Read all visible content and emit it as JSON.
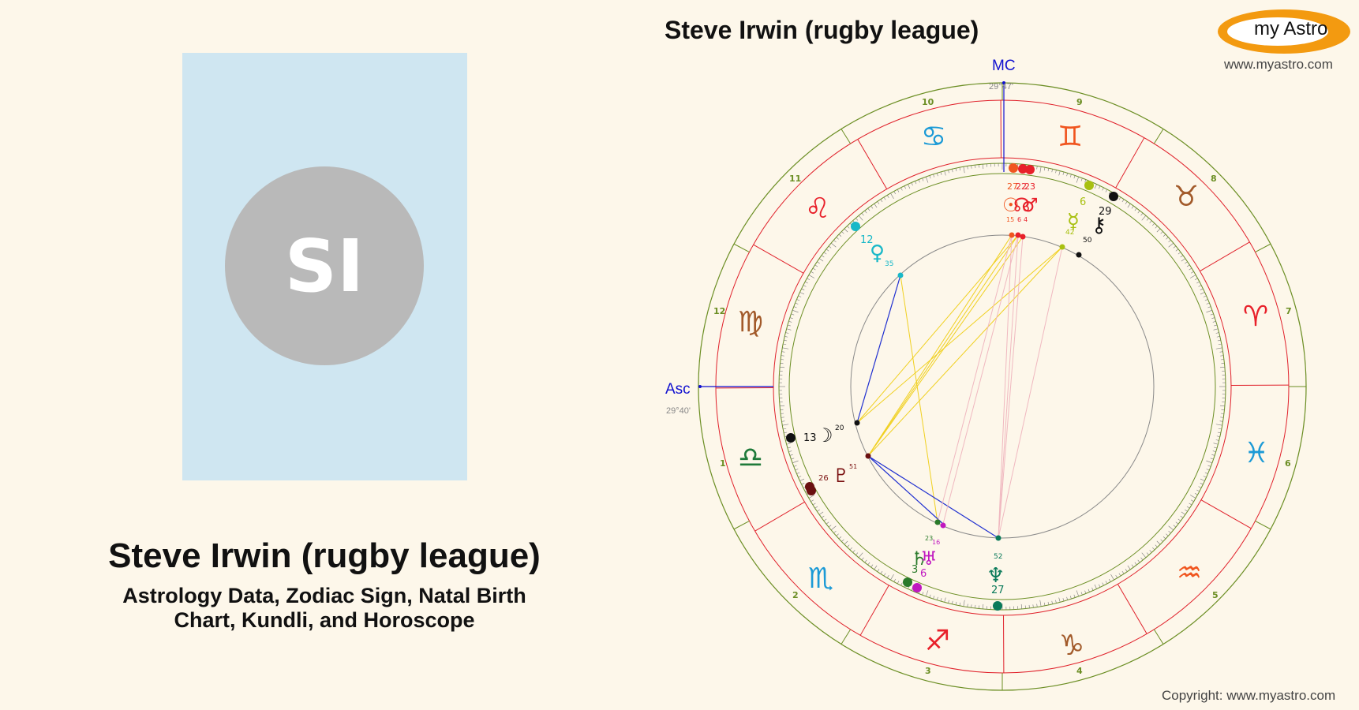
{
  "profile": {
    "initials": "SI",
    "name": "Steve Irwin (rugby league)",
    "subtitle": "Astrology Data, Zodiac Sign, Natal Birth Chart, Kundli, and Horoscope"
  },
  "chart": {
    "title": "Steve Irwin (rugby league)",
    "mc_label": "MC",
    "mc_degree": "29°47'",
    "asc_label": "Asc",
    "asc_degree": "29°40'",
    "house_numbers": [
      "1",
      "2",
      "3",
      "4",
      "5",
      "6",
      "7",
      "8",
      "9",
      "10",
      "11",
      "12"
    ],
    "signs": [
      {
        "name": "aries",
        "glyph": "♈",
        "color": "#e8202a"
      },
      {
        "name": "taurus",
        "glyph": "♉",
        "color": "#a25a2a"
      },
      {
        "name": "gemini",
        "glyph": "♊",
        "color": "#f0551f"
      },
      {
        "name": "cancer",
        "glyph": "♋",
        "color": "#1b9ad6"
      },
      {
        "name": "leo",
        "glyph": "♌",
        "color": "#e8202a"
      },
      {
        "name": "virgo",
        "glyph": "♍",
        "color": "#a25a2a"
      },
      {
        "name": "libra",
        "glyph": "♎",
        "color": "#1f7a3a"
      },
      {
        "name": "scorpio",
        "glyph": "♏",
        "color": "#1b9ad6"
      },
      {
        "name": "sagittarius",
        "glyph": "♐",
        "color": "#e8202a"
      },
      {
        "name": "capricorn",
        "glyph": "♑",
        "color": "#a25a2a"
      },
      {
        "name": "aquarius",
        "glyph": "♒",
        "color": "#f0551f"
      },
      {
        "name": "pisces",
        "glyph": "♓",
        "color": "#1b9ad6"
      }
    ],
    "planets": [
      {
        "name": "moon",
        "glyph": "☽",
        "deg": "13",
        "min": "20",
        "color": "#111111"
      },
      {
        "name": "pluto",
        "glyph": "♇",
        "deg": "26",
        "min": "51",
        "color": "#7a1010"
      },
      {
        "name": "uranus",
        "glyph": "♅",
        "deg": "6",
        "min": "16",
        "color": "#c018c0"
      },
      {
        "name": "saturn",
        "glyph": "♄",
        "deg": "3",
        "min": "23",
        "color": "#2a7a2a"
      },
      {
        "name": "neptune",
        "glyph": "♆",
        "deg": "27",
        "min": "52",
        "color": "#0a7a5a"
      },
      {
        "name": "chiron",
        "glyph": "⚷",
        "deg": "29",
        "min": "50",
        "color": "#111111"
      },
      {
        "name": "mercury",
        "glyph": "☿",
        "deg": "6",
        "min": "42",
        "color": "#a8c010"
      },
      {
        "name": "venus",
        "glyph": "♀",
        "deg": "12",
        "min": "35",
        "color": "#18b8c8"
      },
      {
        "name": "sun",
        "glyph": "☉",
        "deg": "27",
        "min": "15",
        "color": "#f0551f"
      },
      {
        "name": "node",
        "glyph": "☊",
        "deg": "22",
        "min": "6",
        "color": "#e8202a"
      },
      {
        "name": "mars",
        "glyph": "♂",
        "deg": "23",
        "min": "4",
        "color": "#e8202a"
      }
    ]
  },
  "logo": {
    "text": "my Astro"
  },
  "site_url": "www.myastro.com",
  "copyright": "Copyright: www.myastro.com"
}
